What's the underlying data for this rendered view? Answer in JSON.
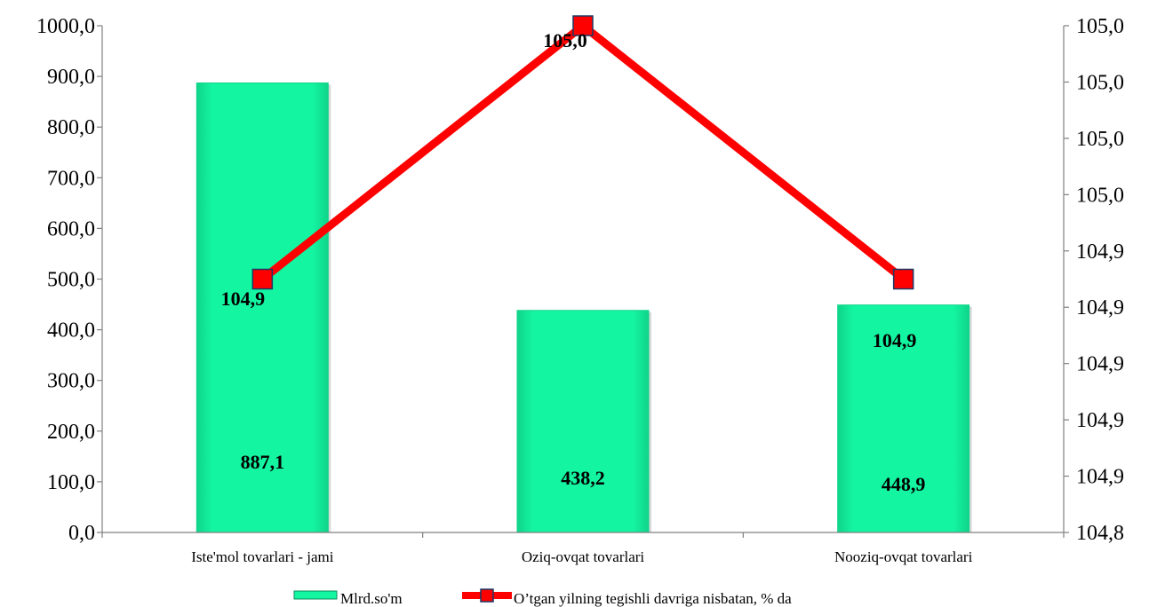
{
  "chart_data": {
    "type": "bar+line",
    "categories": [
      "Iste'mol tovarlari - jami",
      "Oziq-ovqat tovarlari",
      "Nooziq-ovqat tovarlari"
    ],
    "series": [
      {
        "name": "Mlrd.so'm",
        "type": "bar",
        "axis": "left",
        "color": "#14f5a2",
        "values": [
          887.1,
          438.2,
          448.9
        ],
        "labels": [
          "887,1",
          "438,2",
          "448,9"
        ]
      },
      {
        "name": "O’tgan yilning tegishli davriga nisbatan, % da",
        "type": "line",
        "axis": "right",
        "color": "#ff0000",
        "marker_color": "#ff0000",
        "values": [
          104.9,
          105.0,
          104.9
        ],
        "labels": [
          "104,9",
          "105,0",
          "104,9"
        ]
      }
    ],
    "left_axis": {
      "ylim": [
        0,
        1000
      ],
      "tick_labels": [
        "0,0",
        "100,0",
        "200,0",
        "300,0",
        "400,0",
        "500,0",
        "600,0",
        "700,0",
        "800,0",
        "900,0",
        "1000,0"
      ]
    },
    "right_axis": {
      "ylim": [
        104.8,
        105.0
      ],
      "tick_labels": [
        "104,8",
        "104,9",
        "104,9",
        "104,9",
        "104,9",
        "104,9",
        "105,0",
        "105,0",
        "105,0",
        "105,0"
      ]
    },
    "legend_position": "bottom",
    "grid": false
  }
}
